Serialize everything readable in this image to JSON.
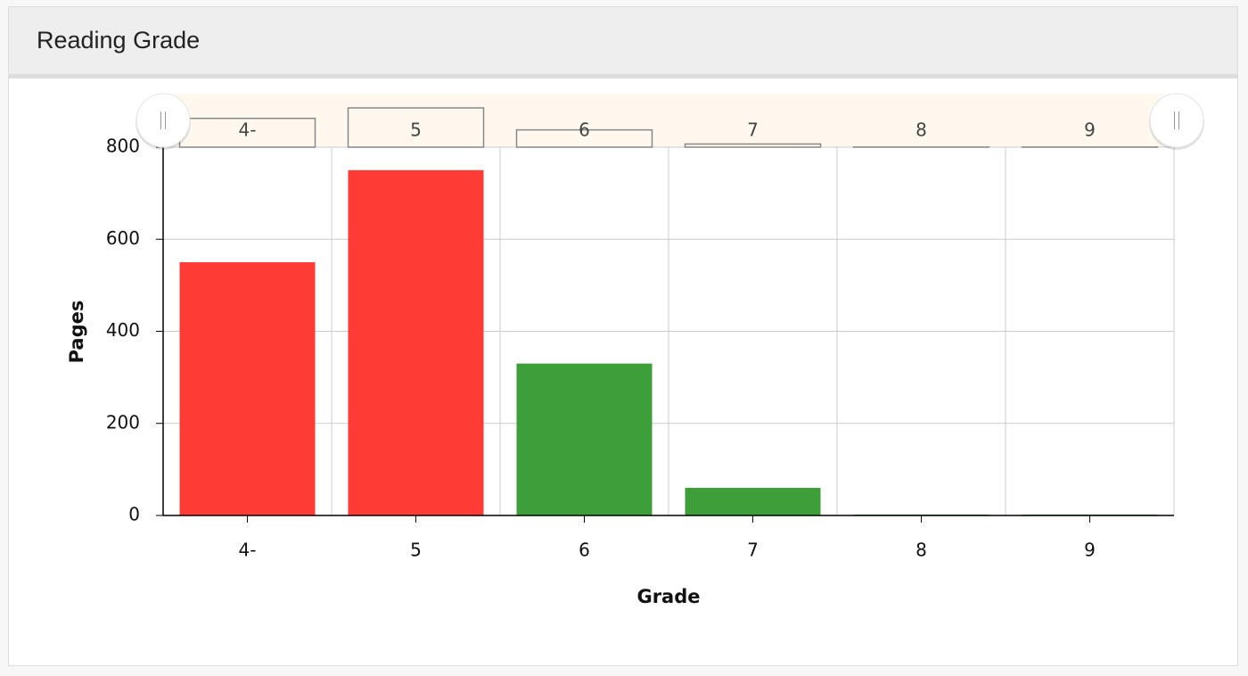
{
  "panel_title": "Reading Grade",
  "chart_data": {
    "type": "bar",
    "categories": [
      "4-",
      "5",
      "6",
      "7",
      "8",
      "9"
    ],
    "values": [
      550,
      750,
      330,
      60,
      2,
      2
    ],
    "colors": [
      "#ff3b36",
      "#ff3b36",
      "#3c9f3a",
      "#3c9f3a",
      "#3c9f3a",
      "#3c9f3a"
    ],
    "xlabel": "Grade",
    "ylabel": "Pages",
    "ylim": [
      0,
      800
    ],
    "yticks": [
      0,
      200,
      400,
      600,
      800
    ],
    "grid": true
  }
}
